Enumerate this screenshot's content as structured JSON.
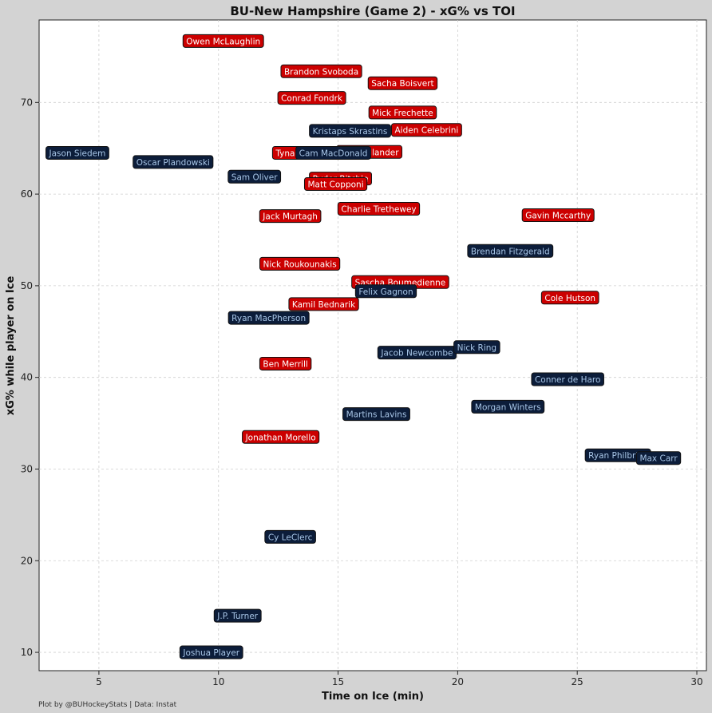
{
  "chart_data": {
    "type": "scatter",
    "title": "BU-New Hampshire (Game 2) - xG% vs TOI",
    "xlabel": "Time on Ice (min)",
    "ylabel": "xG% while player on Ice",
    "xlim": [
      2.5,
      30.4
    ],
    "ylim": [
      8,
      79
    ],
    "xticks": [
      5,
      10,
      15,
      20,
      25,
      30
    ],
    "yticks": [
      10,
      20,
      30,
      40,
      50,
      60,
      70
    ],
    "grid": true,
    "credit": "Plot by @BUHockeyStats | Data: Instat",
    "colors": {
      "BU": "#cc0000",
      "UNH": "#0c1d3a",
      "BU_text": "#ffffff",
      "UNH_text": "#a9c7e8",
      "background": "#d3d3d3",
      "plot_bg": "#ffffff"
    },
    "series": [
      {
        "name": "BU",
        "points": [
          {
            "label": "Owen McLaughlin",
            "x": 10.2,
            "y": 76.7
          },
          {
            "label": "Brandon Svoboda",
            "x": 14.3,
            "y": 73.4
          },
          {
            "label": "Sacha Boisvert",
            "x": 17.7,
            "y": 72.1
          },
          {
            "label": "Conrad Fondrk",
            "x": 13.9,
            "y": 70.5
          },
          {
            "label": "Mick Frechette",
            "x": 17.7,
            "y": 68.9
          },
          {
            "label": "Aiden Celebrini",
            "x": 18.7,
            "y": 67.0
          },
          {
            "label": "Tynan Lawrence",
            "x": 13.8,
            "y": 64.5
          },
          {
            "label": "Tom Willander",
            "x": 16.3,
            "y": 64.6
          },
          {
            "label": "Ryder Ritchie",
            "x": 15.1,
            "y": 61.7
          },
          {
            "label": "Matt Copponi",
            "x": 14.9,
            "y": 61.1
          },
          {
            "label": "Charlie Trethewey",
            "x": 16.7,
            "y": 58.4
          },
          {
            "label": "Jack Murtagh",
            "x": 13.0,
            "y": 57.6
          },
          {
            "label": "Gavin Mccarthy",
            "x": 24.2,
            "y": 57.7
          },
          {
            "label": "Nick Roukounakis",
            "x": 13.4,
            "y": 52.4
          },
          {
            "label": "Sascha Boumedienne",
            "x": 17.6,
            "y": 50.4
          },
          {
            "label": "Cole Hutson",
            "x": 24.7,
            "y": 48.7
          },
          {
            "label": "Kamil Bednarik",
            "x": 14.4,
            "y": 48.0
          },
          {
            "label": "Ben Merrill",
            "x": 12.8,
            "y": 41.5
          },
          {
            "label": "Jonathan Morello",
            "x": 12.6,
            "y": 33.5
          }
        ]
      },
      {
        "name": "UNH",
        "points": [
          {
            "label": "Kristaps Skrastins",
            "x": 15.5,
            "y": 66.9
          },
          {
            "label": "Jason Siedem",
            "x": 4.1,
            "y": 64.5
          },
          {
            "label": "Oscar Plandowski",
            "x": 8.1,
            "y": 63.5
          },
          {
            "label": "Cam MacDonald",
            "x": 14.8,
            "y": 64.5
          },
          {
            "label": "Sam Oliver",
            "x": 11.5,
            "y": 61.9
          },
          {
            "label": "Brendan Fitzgerald",
            "x": 22.2,
            "y": 53.8
          },
          {
            "label": "Felix Gagnon",
            "x": 17.0,
            "y": 49.4
          },
          {
            "label": "Ryan MacPherson",
            "x": 12.1,
            "y": 46.5
          },
          {
            "label": "Jacob Newcombe",
            "x": 18.3,
            "y": 42.7
          },
          {
            "label": "Nick Ring",
            "x": 20.8,
            "y": 43.3
          },
          {
            "label": "Conner de Haro",
            "x": 24.6,
            "y": 39.8
          },
          {
            "label": "Morgan Winters",
            "x": 22.1,
            "y": 36.8
          },
          {
            "label": "Martins Lavins",
            "x": 16.6,
            "y": 36.0
          },
          {
            "label": "Ryan Philbrick",
            "x": 26.7,
            "y": 31.5
          },
          {
            "label": "Max Carr",
            "x": 28.4,
            "y": 31.2
          },
          {
            "label": "Cy LeClerc",
            "x": 13.0,
            "y": 22.6
          },
          {
            "label": "J.P. Turner",
            "x": 10.8,
            "y": 14.0
          },
          {
            "label": "Joshua Player",
            "x": 9.7,
            "y": 10.0
          }
        ]
      }
    ]
  }
}
